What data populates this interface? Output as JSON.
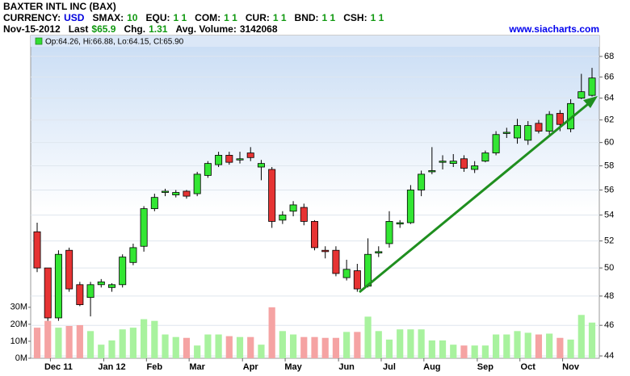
{
  "chart_data": {
    "type": "candlestick",
    "title": "BAXTER INTL INC (BAX)",
    "info_line": [
      {
        "label": "CURRENCY:",
        "value": "USD",
        "color": "#0000dd"
      },
      {
        "label": "SMAX:",
        "value": "10",
        "color": "#119911"
      },
      {
        "label": "EQU:",
        "value": "1 1",
        "color": "#119911"
      },
      {
        "label": "COM:",
        "value": "1 1",
        "color": "#119911"
      },
      {
        "label": "CUR:",
        "value": "1 1",
        "color": "#119911"
      },
      {
        "label": "BND:",
        "value": "1 1",
        "color": "#119911"
      },
      {
        "label": "CSH:",
        "value": "1 1",
        "color": "#119911"
      }
    ],
    "quote_line": [
      {
        "label": "Nov-15-2012",
        "value": null,
        "color": "#000000"
      },
      {
        "label": "Last",
        "value": "$65.9",
        "color": "#119911"
      },
      {
        "label": "Chg.",
        "value": "1.31",
        "color": "#119911"
      },
      {
        "label": "Avg. Volume:",
        "value": "3142068",
        "color": "#000000"
      }
    ],
    "website": "www.siacharts.com",
    "legend": "Op:64.26, Hi:66.88, Lo:64.15, Cl:65.90",
    "categories": [
      null,
      null,
      "Dec 11",
      null,
      null,
      null,
      null,
      "Jan 12",
      null,
      null,
      null,
      "Feb",
      null,
      null,
      null,
      "Mar",
      null,
      null,
      null,
      null,
      "Apr",
      null,
      null,
      null,
      "May",
      null,
      null,
      null,
      null,
      "Jun",
      null,
      null,
      null,
      "Jul",
      null,
      null,
      null,
      "Aug",
      null,
      null,
      null,
      null,
      "Sep",
      null,
      null,
      null,
      "Oct",
      null,
      null,
      null,
      "Nov",
      null,
      null
    ],
    "open": [
      52.7,
      50.0,
      46.5,
      51.3,
      48.8,
      47.9,
      48.8,
      48.6,
      48.8,
      50.4,
      51.6,
      54.5,
      55.8,
      55.6,
      55.9,
      55.7,
      57.2,
      58.1,
      58.9,
      58.5,
      59.1,
      57.9,
      57.7,
      53.6,
      54.3,
      54.6,
      53.5,
      51.3,
      51.3,
      49.3,
      49.8,
      48.7,
      51.1,
      51.8,
      53.3,
      53.4,
      56.0,
      57.5,
      58.3,
      58.2,
      58.6,
      57.7,
      58.4,
      59.1,
      60.8,
      60.4,
      60.2,
      61.7,
      61.0,
      62.6,
      61.2,
      64.0,
      64.26
    ],
    "high": [
      53.4,
      50.0,
      51.3,
      51.5,
      49.0,
      49.0,
      49.2,
      48.9,
      51.0,
      51.8,
      54.7,
      55.7,
      56.1,
      56.0,
      56.0,
      57.5,
      58.4,
      59.2,
      59.2,
      59.2,
      59.6,
      58.5,
      57.9,
      54.3,
      55.1,
      54.9,
      53.6,
      51.6,
      51.6,
      50.6,
      50.3,
      52.2,
      51.6,
      54.3,
      53.6,
      56.4,
      57.6,
      59.6,
      58.9,
      59.0,
      58.9,
      58.4,
      59.3,
      61.0,
      61.3,
      62.1,
      61.9,
      62.0,
      62.8,
      62.9,
      63.9,
      66.3,
      66.88
    ],
    "low": [
      49.7,
      46.3,
      46.3,
      48.3,
      47.3,
      46.6,
      48.6,
      48.3,
      48.6,
      50.2,
      51.2,
      54.3,
      55.5,
      55.4,
      55.3,
      55.5,
      57.0,
      57.9,
      58.1,
      58.2,
      58.4,
      56.8,
      53.0,
      53.3,
      53.9,
      53.2,
      51.3,
      50.7,
      49.4,
      49.1,
      48.3,
      48.6,
      50.8,
      51.5,
      53.0,
      53.3,
      55.5,
      57.3,
      57.7,
      57.9,
      57.5,
      57.4,
      58.3,
      58.9,
      60.4,
      59.9,
      59.8,
      60.8,
      60.7,
      61.0,
      60.9,
      63.9,
      64.15
    ],
    "close": [
      50.0,
      46.5,
      51.0,
      48.5,
      47.4,
      48.8,
      49.0,
      48.8,
      50.8,
      51.5,
      54.5,
      55.4,
      55.9,
      55.8,
      55.5,
      57.3,
      58.2,
      58.9,
      58.3,
      58.6,
      58.7,
      58.2,
      53.5,
      54.0,
      54.8,
      53.5,
      51.5,
      51.2,
      49.6,
      49.9,
      48.5,
      51.0,
      51.2,
      53.5,
      53.4,
      56.0,
      57.3,
      57.6,
      58.4,
      58.4,
      57.8,
      58.0,
      59.1,
      60.7,
      60.9,
      61.5,
      61.5,
      61.0,
      62.5,
      61.6,
      63.5,
      64.6,
      65.9
    ],
    "volume": {
      "axis": "y2",
      "values": [
        18,
        22,
        18,
        19,
        19.5,
        16,
        8,
        10.5,
        17,
        18,
        23,
        22,
        14,
        12.5,
        12,
        7.5,
        14,
        14,
        13,
        12.5,
        12.5,
        8,
        30,
        16,
        14,
        12.5,
        12.5,
        12,
        12,
        15.5,
        15.5,
        24.5,
        16,
        11,
        17,
        17,
        17,
        10.5,
        10.5,
        8,
        7.5,
        7.5,
        7.5,
        14,
        14,
        16,
        15,
        14,
        14.5,
        12,
        11,
        25.5,
        21
      ]
    },
    "up_color": "#33e633",
    "down_color": "#e63333",
    "volume_up_color": "#a8f29e",
    "volume_down_color": "#f5a3a3",
    "log_scale": true,
    "ylim": [
      43.85,
      70.1
    ],
    "yticks": [
      44,
      46,
      48,
      50,
      52,
      54,
      56,
      58,
      60,
      62,
      64,
      66,
      68
    ],
    "y2lim": [
      0,
      190
    ],
    "y2ticks": [
      {
        "value": 0,
        "label": "0M"
      },
      {
        "value": 10,
        "label": "10M"
      },
      {
        "value": 20,
        "label": "20M"
      },
      {
        "value": 30,
        "label": "30M"
      }
    ],
    "grid": true
  }
}
